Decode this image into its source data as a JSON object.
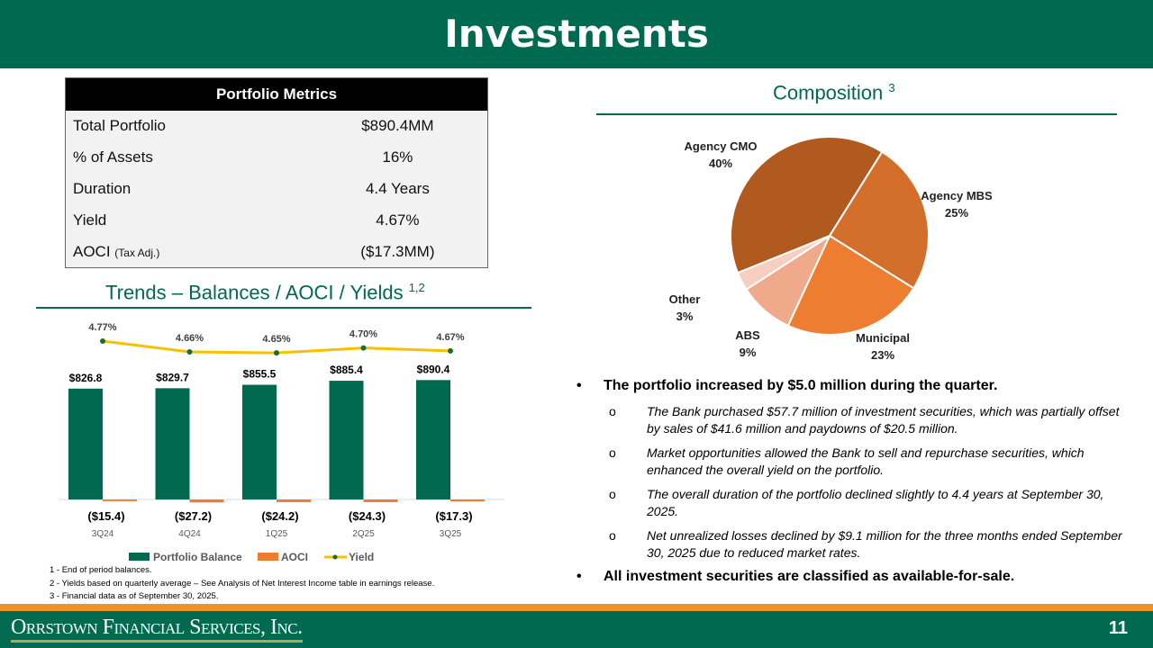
{
  "header": {
    "title": "Investments"
  },
  "metrics": {
    "title": "Portfolio Metrics",
    "rows": [
      {
        "label": "Total Portfolio",
        "note": "",
        "value": "$890.4MM"
      },
      {
        "label": "% of Assets",
        "note": "",
        "value": "16%"
      },
      {
        "label": "Duration",
        "note": "",
        "value": "4.4 Years"
      },
      {
        "label": "Yield",
        "note": "",
        "value": "4.67%"
      },
      {
        "label": "AOCI",
        "note": "(Tax Adj.)",
        "value": "($17.3MM)"
      }
    ]
  },
  "trends_title": "Trends – Balances / AOCI / Yields",
  "trends_sup": "1,2",
  "composition_title": "Composition",
  "composition_sup": "3",
  "chart_data": [
    {
      "type": "bar",
      "categories": [
        "3Q24",
        "4Q24",
        "1Q25",
        "2Q25",
        "3Q25"
      ],
      "series": [
        {
          "name": "Portfolio Balance",
          "kind": "bar",
          "color": "#006a50",
          "values": [
            826.8,
            829.7,
            855.5,
            885.4,
            890.4
          ],
          "labels": [
            "$826.8",
            "$829.7",
            "$855.5",
            "$885.4",
            "$890.4"
          ]
        },
        {
          "name": "AOCI",
          "kind": "bar",
          "color": "#ed7d31",
          "values": [
            -15.4,
            -27.2,
            -24.2,
            -24.3,
            -17.3
          ],
          "labels": [
            "($15.4)",
            "($27.2)",
            "($24.2)",
            "($24.3)",
            "($17.3)"
          ]
        },
        {
          "name": "Yield",
          "kind": "line",
          "color": "#f5c100",
          "marker_color": "#1e6b2e",
          "values": [
            4.77,
            4.66,
            4.65,
            4.7,
            4.67
          ],
          "labels": [
            "4.77%",
            "4.66%",
            "4.65%",
            "4.70%",
            "4.67%"
          ]
        }
      ],
      "legend": "bottom"
    },
    {
      "type": "pie",
      "slices": [
        {
          "name": "Agency CMO",
          "value": 40,
          "label": "40%",
          "color": "#b05a20"
        },
        {
          "name": "Agency MBS",
          "value": 25,
          "label": "25%",
          "color": "#d46f2b"
        },
        {
          "name": "Municipal",
          "value": 23,
          "label": "23%",
          "color": "#ed7d31"
        },
        {
          "name": "ABS",
          "value": 9,
          "label": "9%",
          "color": "#f0a98a"
        },
        {
          "name": "Other",
          "value": 3,
          "label": "3%",
          "color": "#f7cfc0"
        }
      ]
    }
  ],
  "footnotes": [
    "1 - End of period balances.",
    "2 - Yields based on quarterly average – See Analysis of Net Interest Income table in earnings release.",
    "3 - Financial data as of September 30, 2025."
  ],
  "bullets": [
    {
      "text": "The portfolio increased by $5.0 million during the quarter.",
      "sub": [
        "The Bank purchased $57.7 million of investment securities, which was partially offset by sales of $41.6 million and paydowns of $20.5 million.",
        "Market opportunities allowed the Bank to sell and repurchase securities, which enhanced the overall yield on the portfolio.",
        "The overall duration of the portfolio declined slightly to 4.4 years at September 30, 2025.",
        "Net unrealized losses declined by $9.1 million for the three months ended September 30, 2025 due to reduced market rates."
      ]
    },
    {
      "text": "All investment securities are classified as available-for-sale.",
      "sub": []
    }
  ],
  "footer": {
    "logo": "Orrstown Financial Services, Inc.",
    "page": "11"
  }
}
